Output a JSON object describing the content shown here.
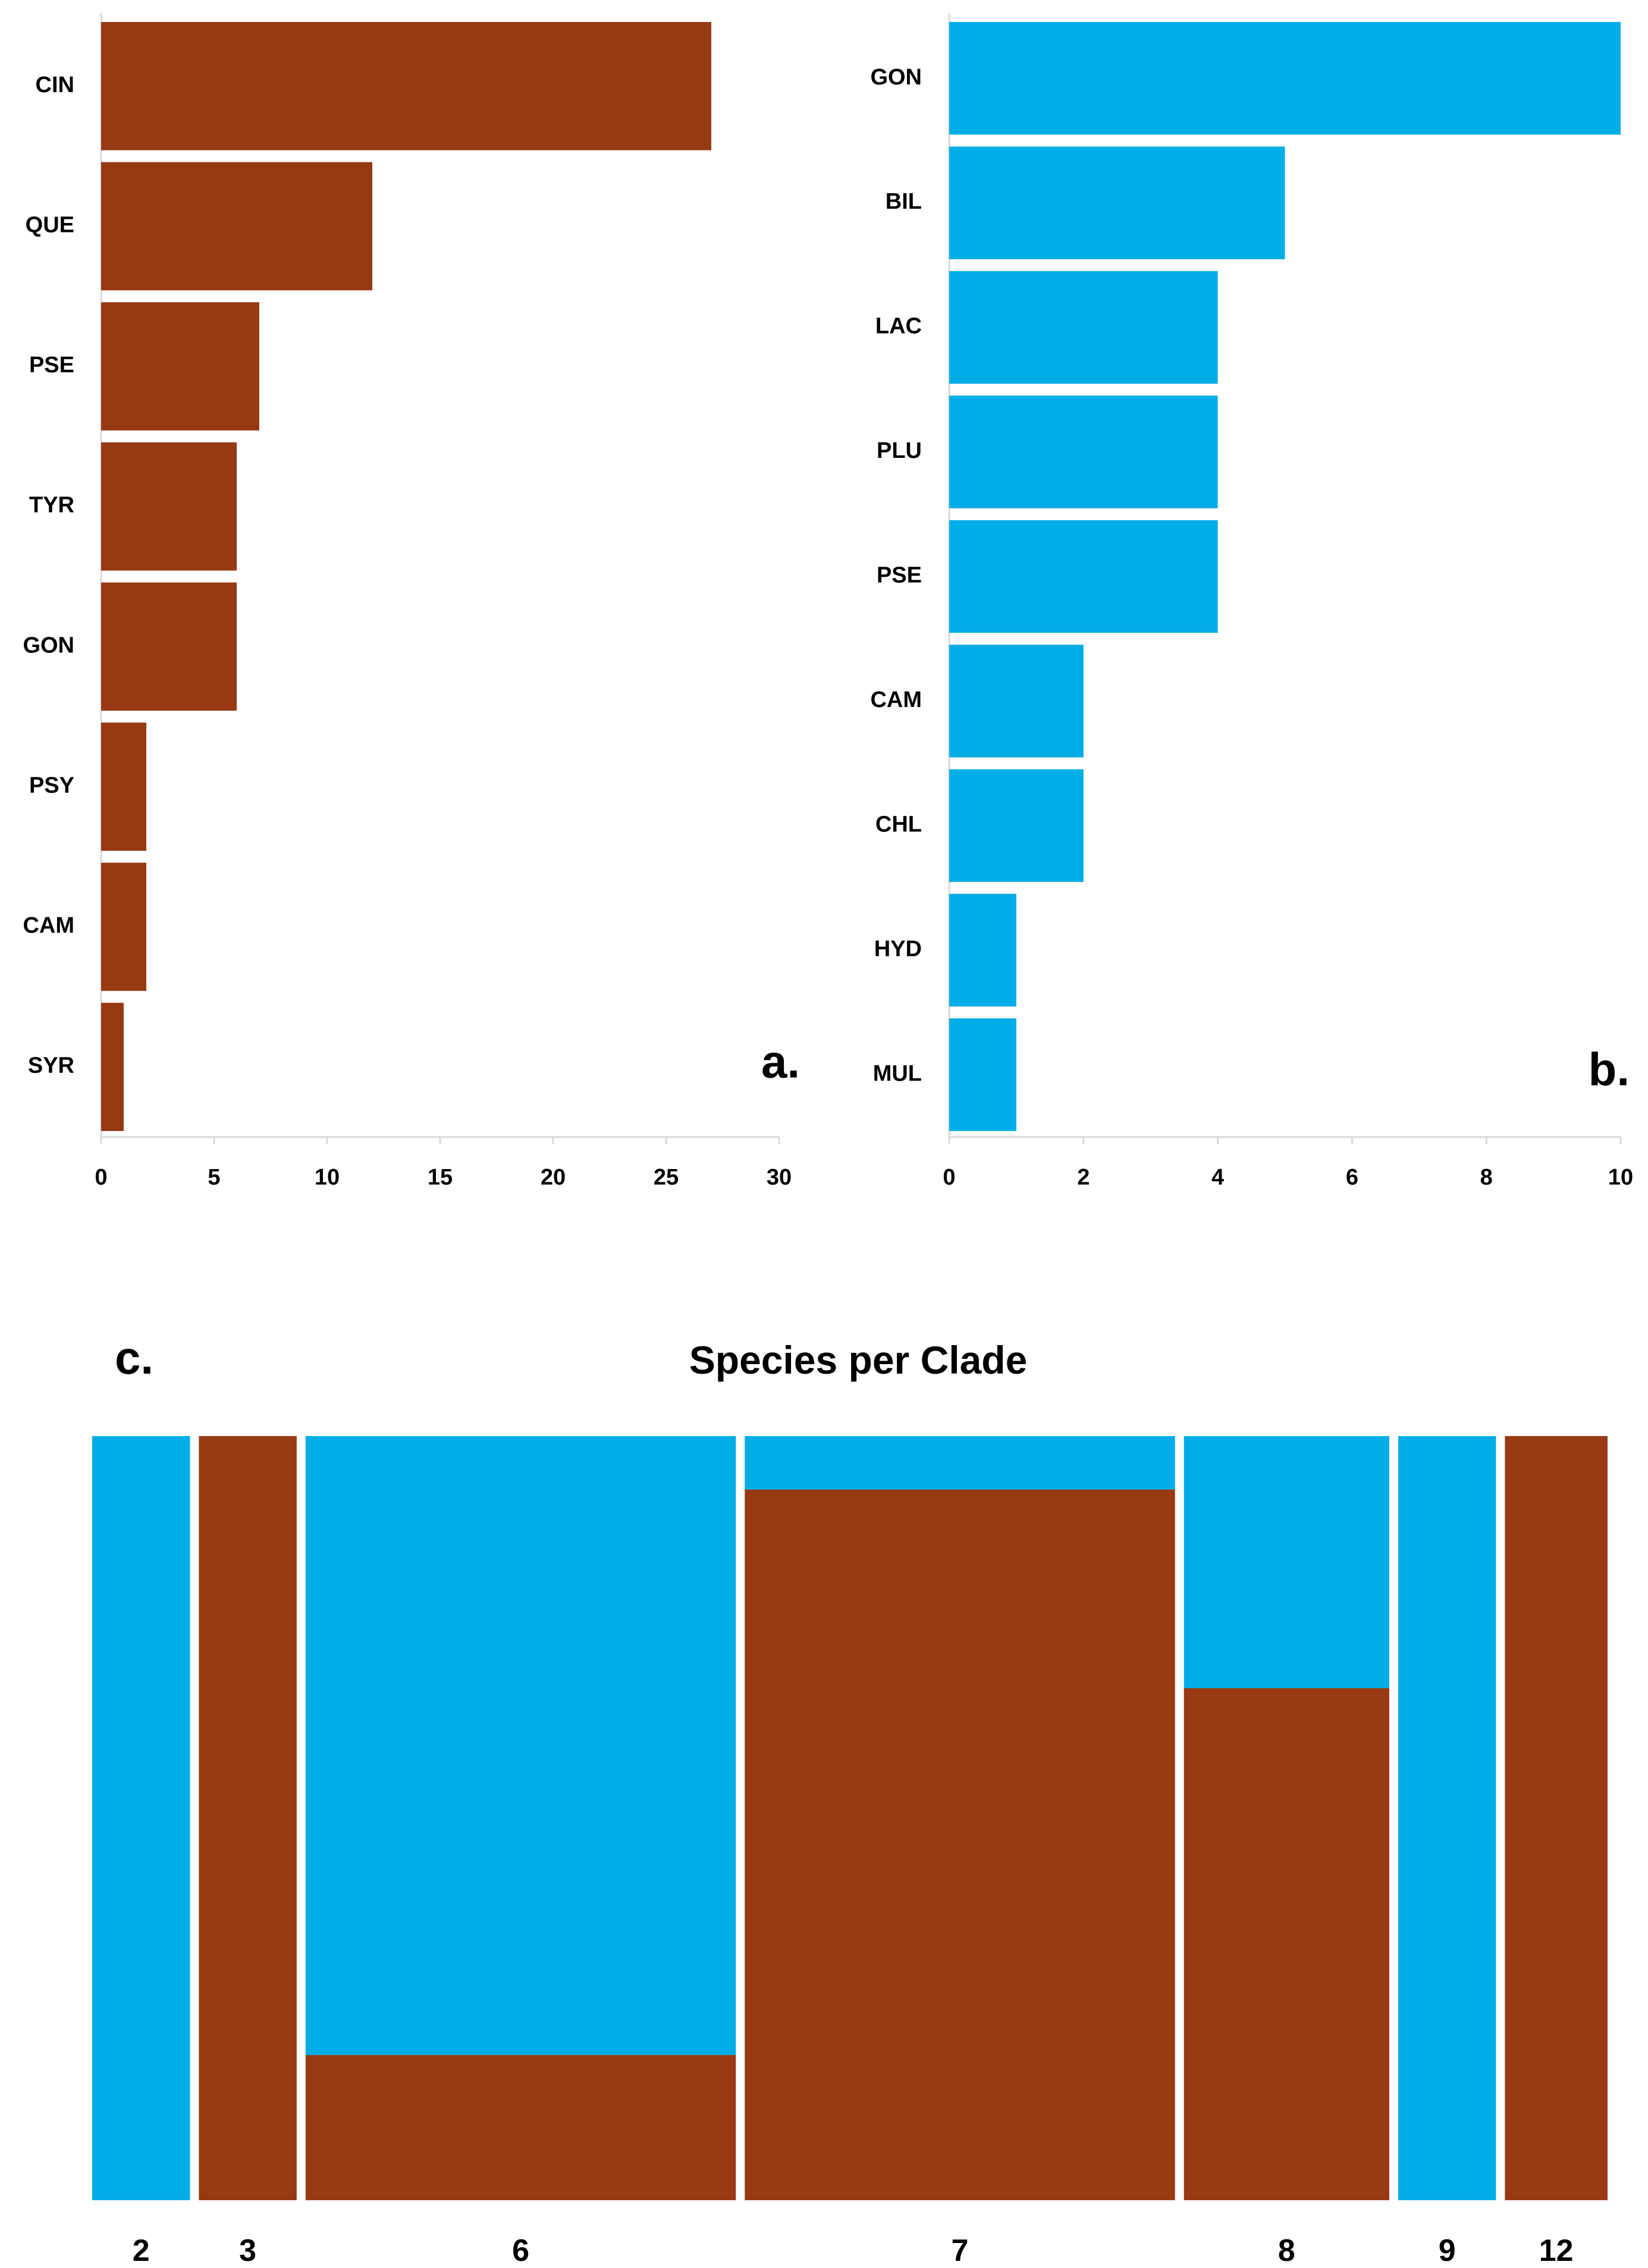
{
  "chart_data": [
    {
      "type": "bar",
      "orientation": "horizontal",
      "panel_label": "a.",
      "categories": [
        "CIN",
        "QUE",
        "PSE",
        "TYR",
        "GON",
        "PSY",
        "CAM",
        "SYR"
      ],
      "values": [
        27,
        12,
        7,
        6,
        6,
        2,
        2,
        1
      ],
      "xlim": [
        0,
        30
      ],
      "xticks": [
        0,
        5,
        10,
        15,
        20,
        25,
        30
      ],
      "color": "#973913"
    },
    {
      "type": "bar",
      "orientation": "horizontal",
      "panel_label": "b.",
      "categories": [
        "GON",
        "BIL",
        "LAC",
        "PLU",
        "PSE",
        "CAM",
        "CHL",
        "HYD",
        "MUL"
      ],
      "values": [
        10,
        5,
        4,
        4,
        4,
        2,
        2,
        1,
        1
      ],
      "xlim": [
        0,
        10
      ],
      "xticks": [
        0,
        2,
        4,
        6,
        8,
        10
      ],
      "color": "#00ADE6"
    },
    {
      "type": "mosaic",
      "panel_label": "c.",
      "title": "Species per Clade",
      "categories": [
        "2",
        "3",
        "6",
        "7",
        "8",
        "9",
        "12"
      ],
      "widths": [
        1,
        1,
        4.4,
        4.4,
        2.1,
        1,
        1.05
      ],
      "brown_share": [
        0,
        1,
        0.19,
        0.93,
        0.67,
        0,
        1
      ],
      "colors": {
        "brown": "#973913",
        "blue": "#00ADE6"
      }
    }
  ]
}
